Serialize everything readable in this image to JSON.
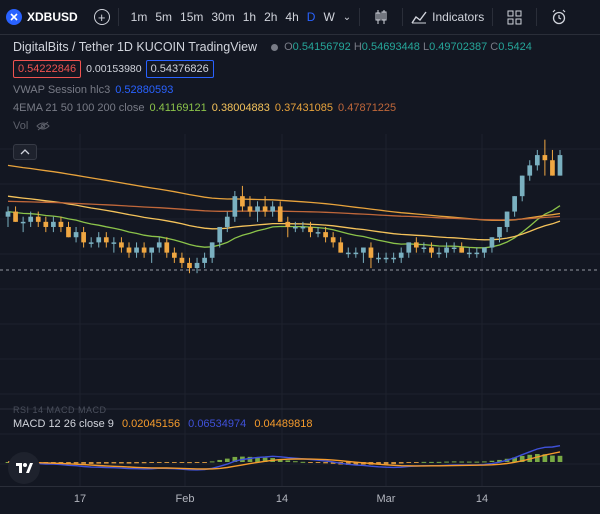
{
  "toolbar": {
    "symbol": "XDBUSD",
    "timeframes": [
      "1m",
      "5m",
      "15m",
      "30m",
      "1h",
      "2h",
      "4h",
      "D",
      "W"
    ],
    "active_timeframe": "D",
    "indicators_label": "Indicators"
  },
  "legend": {
    "title": "DigitalBits / Tether  1D  KUCOIN  TradingView",
    "ohlc": {
      "o_label": "O",
      "o": "0.54156792",
      "h_label": "H",
      "h": "0.54693448",
      "l_label": "L",
      "l": "0.49702387",
      "c_label": "C",
      "c": "0.5424"
    },
    "bid": "0.54222846",
    "spread": "0.00153980",
    "ask": "0.54376826",
    "vwap_label": "VWAP Session hlc3",
    "vwap_value": "0.52880593",
    "ema_label": "4EMA 21 50 100 200 close",
    "ema_values": [
      "0.41169121",
      "0.38004883",
      "0.37431085",
      "0.47871225"
    ],
    "vol_label": "Vol"
  },
  "macd": {
    "ghost_label": "RSI 14 MACD MACD",
    "label": "MACD 12 26 close 9",
    "values": [
      "0.02045156",
      "0.06534974",
      "0.04489818"
    ]
  },
  "xaxis": {
    "labels": [
      "17",
      "Feb",
      "14",
      "Mar",
      "14"
    ]
  },
  "colors": {
    "background": "#131722",
    "up": "#7ab0c0",
    "down": "#f0a742",
    "ema21": "#8bc34a",
    "ema50": "#f5c35b",
    "ema100": "#e8a33c",
    "ema200": "#c0673a",
    "macd": "#3f51d9",
    "signal": "#f59b2c",
    "accent": "#2962ff"
  },
  "chart_data": {
    "type": "candlestick",
    "candles": [
      [
        0.42,
        0.44,
        0.4,
        0.43
      ],
      [
        0.43,
        0.44,
        0.41,
        0.41
      ],
      [
        0.41,
        0.42,
        0.39,
        0.41
      ],
      [
        0.41,
        0.43,
        0.4,
        0.42
      ],
      [
        0.42,
        0.43,
        0.4,
        0.41
      ],
      [
        0.41,
        0.42,
        0.39,
        0.4
      ],
      [
        0.4,
        0.42,
        0.39,
        0.41
      ],
      [
        0.41,
        0.42,
        0.39,
        0.4
      ],
      [
        0.4,
        0.41,
        0.38,
        0.38
      ],
      [
        0.38,
        0.4,
        0.37,
        0.39
      ],
      [
        0.39,
        0.4,
        0.36,
        0.37
      ],
      [
        0.37,
        0.38,
        0.36,
        0.37
      ],
      [
        0.37,
        0.39,
        0.36,
        0.38
      ],
      [
        0.38,
        0.39,
        0.36,
        0.37
      ],
      [
        0.37,
        0.38,
        0.35,
        0.37
      ],
      [
        0.37,
        0.38,
        0.35,
        0.36
      ],
      [
        0.36,
        0.37,
        0.34,
        0.35
      ],
      [
        0.35,
        0.37,
        0.34,
        0.36
      ],
      [
        0.36,
        0.37,
        0.34,
        0.35
      ],
      [
        0.35,
        0.36,
        0.33,
        0.36
      ],
      [
        0.36,
        0.38,
        0.35,
        0.37
      ],
      [
        0.37,
        0.38,
        0.34,
        0.35
      ],
      [
        0.35,
        0.36,
        0.33,
        0.34
      ],
      [
        0.34,
        0.35,
        0.32,
        0.33
      ],
      [
        0.33,
        0.34,
        0.31,
        0.32
      ],
      [
        0.32,
        0.34,
        0.31,
        0.33
      ],
      [
        0.33,
        0.35,
        0.32,
        0.34
      ],
      [
        0.34,
        0.37,
        0.33,
        0.37
      ],
      [
        0.37,
        0.4,
        0.36,
        0.4
      ],
      [
        0.4,
        0.43,
        0.39,
        0.42
      ],
      [
        0.42,
        0.47,
        0.41,
        0.46
      ],
      [
        0.46,
        0.48,
        0.43,
        0.44
      ],
      [
        0.44,
        0.46,
        0.42,
        0.43
      ],
      [
        0.43,
        0.45,
        0.41,
        0.44
      ],
      [
        0.44,
        0.46,
        0.42,
        0.43
      ],
      [
        0.43,
        0.45,
        0.42,
        0.44
      ],
      [
        0.44,
        0.45,
        0.41,
        0.41
      ],
      [
        0.41,
        0.42,
        0.38,
        0.4
      ],
      [
        0.4,
        0.41,
        0.39,
        0.4
      ],
      [
        0.4,
        0.41,
        0.39,
        0.4
      ],
      [
        0.4,
        0.41,
        0.38,
        0.39
      ],
      [
        0.39,
        0.4,
        0.38,
        0.39
      ],
      [
        0.39,
        0.4,
        0.37,
        0.38
      ],
      [
        0.38,
        0.39,
        0.36,
        0.37
      ],
      [
        0.37,
        0.38,
        0.35,
        0.35
      ],
      [
        0.35,
        0.36,
        0.34,
        0.35
      ],
      [
        0.35,
        0.36,
        0.34,
        0.35
      ],
      [
        0.35,
        0.36,
        0.33,
        0.36
      ],
      [
        0.36,
        0.37,
        0.32,
        0.34
      ],
      [
        0.34,
        0.35,
        0.33,
        0.34
      ],
      [
        0.34,
        0.35,
        0.33,
        0.34
      ],
      [
        0.34,
        0.35,
        0.33,
        0.34
      ],
      [
        0.34,
        0.36,
        0.33,
        0.35
      ],
      [
        0.35,
        0.37,
        0.34,
        0.37
      ],
      [
        0.37,
        0.38,
        0.35,
        0.36
      ],
      [
        0.36,
        0.37,
        0.35,
        0.36
      ],
      [
        0.36,
        0.37,
        0.34,
        0.35
      ],
      [
        0.35,
        0.36,
        0.34,
        0.35
      ],
      [
        0.35,
        0.37,
        0.34,
        0.36
      ],
      [
        0.36,
        0.37,
        0.35,
        0.36
      ],
      [
        0.36,
        0.37,
        0.35,
        0.35
      ],
      [
        0.35,
        0.36,
        0.34,
        0.35
      ],
      [
        0.35,
        0.36,
        0.34,
        0.35
      ],
      [
        0.35,
        0.36,
        0.34,
        0.36
      ],
      [
        0.36,
        0.38,
        0.35,
        0.38
      ],
      [
        0.38,
        0.4,
        0.37,
        0.4
      ],
      [
        0.4,
        0.43,
        0.39,
        0.43
      ],
      [
        0.43,
        0.46,
        0.42,
        0.46
      ],
      [
        0.46,
        0.5,
        0.45,
        0.5
      ],
      [
        0.5,
        0.53,
        0.49,
        0.52
      ],
      [
        0.52,
        0.55,
        0.51,
        0.54
      ],
      [
        0.54,
        0.57,
        0.5,
        0.53
      ],
      [
        0.53,
        0.55,
        0.5,
        0.5
      ],
      [
        0.5,
        0.55,
        0.5,
        0.54
      ]
    ],
    "price_range": [
      0.25,
      0.62
    ],
    "xaxis_labels": [
      "17",
      "Feb",
      "14",
      "Mar",
      "14"
    ]
  }
}
